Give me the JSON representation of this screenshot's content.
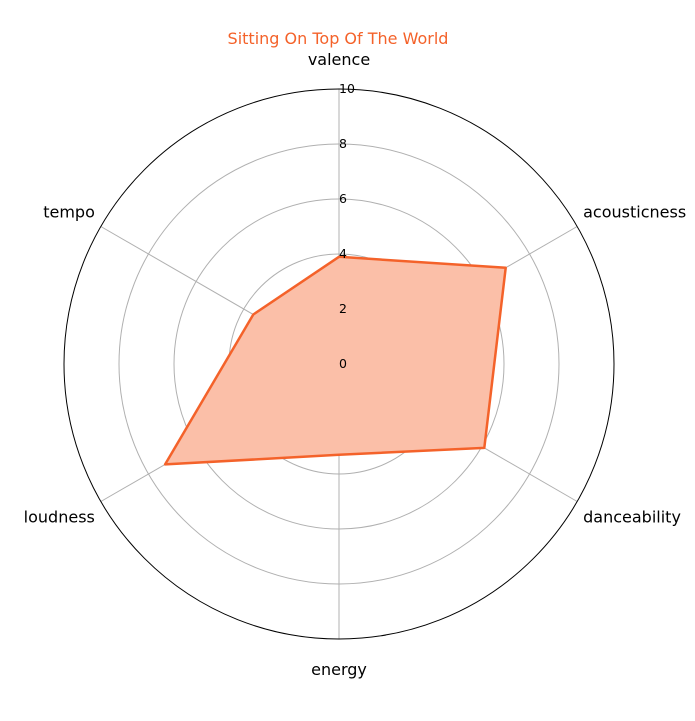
{
  "chart_data": {
    "type": "radar",
    "title": "Sitting On Top Of The World",
    "axes": [
      "valence",
      "acousticness",
      "danceability",
      "energy",
      "loudness",
      "tempo"
    ],
    "rlim": [
      0,
      10
    ],
    "r_ticks": [
      "0",
      "2",
      "4",
      "6",
      "8",
      "10"
    ],
    "series": [
      {
        "values": [
          3.9,
          7.0,
          6.1,
          3.3,
          7.3,
          3.6
        ]
      }
    ],
    "grid": true,
    "colors": {
      "line": "#f4622a",
      "fill": "#fbbfa8",
      "title": "#f4622a",
      "grid": "#b0b0b0",
      "frame": "#000000"
    }
  }
}
